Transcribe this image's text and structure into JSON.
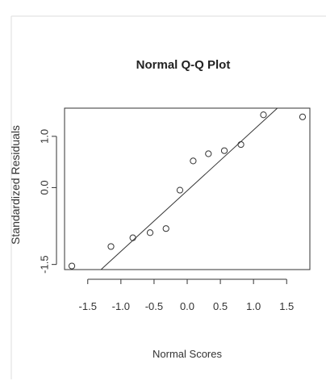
{
  "chart_data": {
    "type": "scatter",
    "title": "Normal Q-Q Plot",
    "xlabel": "Normal Scores",
    "ylabel": "Standardized Residuals",
    "xlim": [
      -1.85,
      1.85
    ],
    "ylim": [
      -1.6,
      1.55
    ],
    "x_ticks": [
      -1.5,
      -1.0,
      -0.5,
      0.0,
      0.5,
      1.0,
      1.5
    ],
    "x_tick_labels": [
      "-1.5",
      "-1.0",
      "-0.5",
      "0.0",
      "0.5",
      "1.0",
      "1.5"
    ],
    "y_ticks": [
      -1.5,
      0.0,
      1.0
    ],
    "y_tick_labels": [
      "-1.5",
      "0.0",
      "1.0"
    ],
    "points": [
      {
        "x": -1.74,
        "y": -1.53
      },
      {
        "x": -1.15,
        "y": -1.15
      },
      {
        "x": -0.82,
        "y": -0.98
      },
      {
        "x": -0.56,
        "y": -0.88
      },
      {
        "x": -0.32,
        "y": -0.8
      },
      {
        "x": -0.11,
        "y": -0.05
      },
      {
        "x": 0.09,
        "y": 0.52
      },
      {
        "x": 0.32,
        "y": 0.66
      },
      {
        "x": 0.56,
        "y": 0.72
      },
      {
        "x": 0.81,
        "y": 0.84
      },
      {
        "x": 1.15,
        "y": 1.42
      },
      {
        "x": 1.74,
        "y": 1.38
      }
    ],
    "reference_line": {
      "x1": -1.3,
      "y1": -1.62,
      "x2": 1.36,
      "y2": 1.58
    },
    "point_marker": "open-circle",
    "colors": {
      "points": "#333333",
      "line": "#333333",
      "axis": "#333333",
      "text": "#333333"
    }
  }
}
